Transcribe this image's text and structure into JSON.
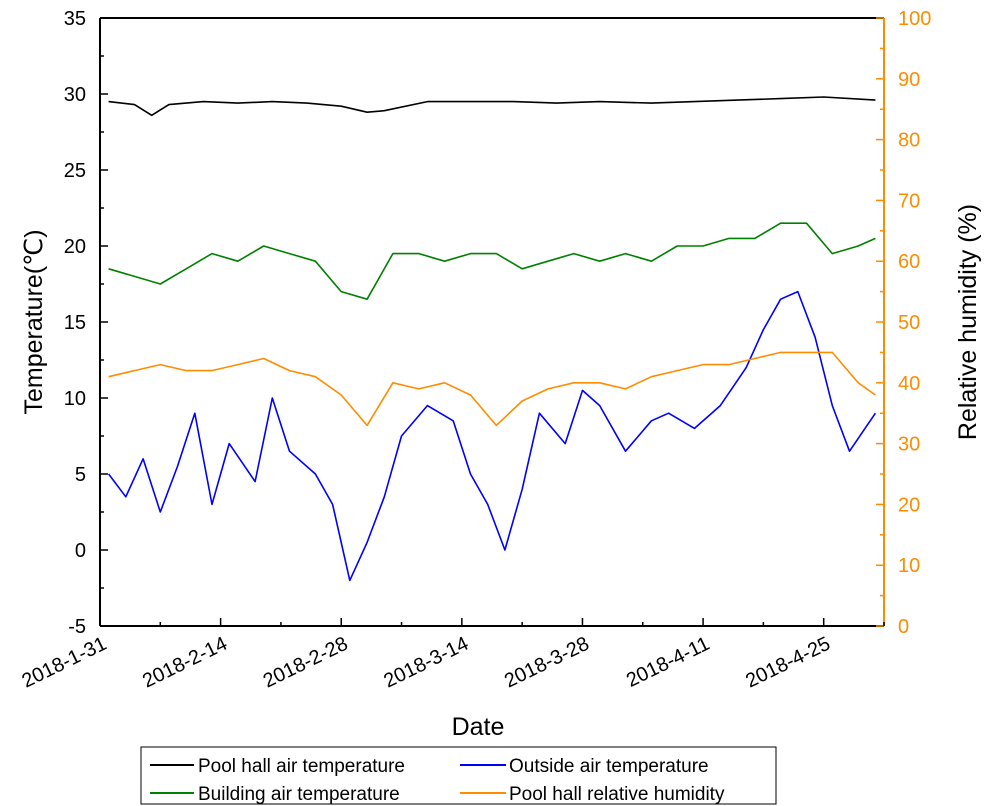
{
  "chart_data": {
    "type": "line",
    "xlabel": "Date",
    "ylabel_left": "Temperature(℃)",
    "ylabel_right": "Relative humidity (%)",
    "x_start": "2018-1-31",
    "x_end": "2018-5-2",
    "x_ticks": [
      "2018-1-31",
      "2018-2-14",
      "2018-2-28",
      "2018-3-14",
      "2018-3-28",
      "2018-4-11",
      "2018-4-25"
    ],
    "y_left_lim": [
      -5,
      35
    ],
    "y_left_ticks": [
      "-5",
      "0",
      "5",
      "10",
      "15",
      "20",
      "25",
      "30",
      "35"
    ],
    "y_right_lim": [
      0,
      100
    ],
    "y_right_ticks": [
      "0",
      "10",
      "20",
      "30",
      "40",
      "50",
      "60",
      "70",
      "80",
      "90",
      "100"
    ],
    "grid": false,
    "legend_position": "bottom",
    "colors": {
      "pool_temp": "#000000",
      "outside_temp": "#0000ff",
      "building_temp": "#008000",
      "humidity": "#ff8c00",
      "right_axis": "#ff8c00"
    },
    "series": [
      {
        "name": "Pool hall air temperature",
        "axis": "left",
        "x": [
          "2018-2-1",
          "2018-2-4",
          "2018-2-6",
          "2018-2-8",
          "2018-2-12",
          "2018-2-16",
          "2018-2-20",
          "2018-2-24",
          "2018-2-28",
          "2018-3-3",
          "2018-3-5",
          "2018-3-10",
          "2018-3-15",
          "2018-3-20",
          "2018-3-25",
          "2018-3-30",
          "2018-4-5",
          "2018-4-10",
          "2018-4-15",
          "2018-4-20",
          "2018-4-25",
          "2018-5-1"
        ],
        "y": [
          29.5,
          29.3,
          28.6,
          29.3,
          29.5,
          29.4,
          29.5,
          29.4,
          29.2,
          28.8,
          28.9,
          29.5,
          29.5,
          29.5,
          29.4,
          29.5,
          29.4,
          29.5,
          29.6,
          29.7,
          29.8,
          29.6
        ]
      },
      {
        "name": "Outside air temperature",
        "axis": "left",
        "x": [
          "2018-2-1",
          "2018-2-3",
          "2018-2-5",
          "2018-2-7",
          "2018-2-9",
          "2018-2-11",
          "2018-2-13",
          "2018-2-15",
          "2018-2-18",
          "2018-2-20",
          "2018-2-22",
          "2018-2-25",
          "2018-2-27",
          "2018-3-1",
          "2018-3-3",
          "2018-3-5",
          "2018-3-7",
          "2018-3-10",
          "2018-3-13",
          "2018-3-15",
          "2018-3-17",
          "2018-3-19",
          "2018-3-21",
          "2018-3-23",
          "2018-3-26",
          "2018-3-28",
          "2018-3-30",
          "2018-4-2",
          "2018-4-5",
          "2018-4-7",
          "2018-4-10",
          "2018-4-13",
          "2018-4-16",
          "2018-4-18",
          "2018-4-20",
          "2018-4-22",
          "2018-4-24",
          "2018-4-26",
          "2018-4-28",
          "2018-5-1"
        ],
        "y": [
          5.0,
          3.5,
          6.0,
          2.5,
          5.5,
          9.0,
          3.0,
          7.0,
          4.5,
          10.0,
          6.5,
          5.0,
          3.0,
          -2.0,
          0.5,
          3.5,
          7.5,
          9.5,
          8.5,
          5.0,
          3.0,
          0.0,
          4.0,
          9.0,
          7.0,
          10.5,
          9.5,
          6.5,
          8.5,
          9.0,
          8.0,
          9.5,
          12.0,
          14.5,
          16.5,
          17.0,
          14.0,
          9.5,
          6.5,
          9.0
        ]
      },
      {
        "name": "Building air temperature",
        "axis": "left",
        "x": [
          "2018-2-1",
          "2018-2-4",
          "2018-2-7",
          "2018-2-10",
          "2018-2-13",
          "2018-2-16",
          "2018-2-19",
          "2018-2-22",
          "2018-2-25",
          "2018-2-28",
          "2018-3-3",
          "2018-3-6",
          "2018-3-9",
          "2018-3-12",
          "2018-3-15",
          "2018-3-18",
          "2018-3-21",
          "2018-3-24",
          "2018-3-27",
          "2018-3-30",
          "2018-4-2",
          "2018-4-5",
          "2018-4-8",
          "2018-4-11",
          "2018-4-14",
          "2018-4-17",
          "2018-4-20",
          "2018-4-23",
          "2018-4-26",
          "2018-4-29",
          "2018-5-1"
        ],
        "y": [
          18.5,
          18.0,
          17.5,
          18.5,
          19.5,
          19.0,
          20.0,
          19.5,
          19.0,
          17.0,
          16.5,
          19.5,
          19.5,
          19.0,
          19.5,
          19.5,
          18.5,
          19.0,
          19.5,
          19.0,
          19.5,
          19.0,
          20.0,
          20.0,
          20.5,
          20.5,
          21.5,
          21.5,
          19.5,
          20.0,
          20.5
        ]
      },
      {
        "name": "Pool hall relative humidity",
        "axis": "right",
        "x": [
          "2018-2-1",
          "2018-2-4",
          "2018-2-7",
          "2018-2-10",
          "2018-2-13",
          "2018-2-16",
          "2018-2-19",
          "2018-2-22",
          "2018-2-25",
          "2018-2-28",
          "2018-3-3",
          "2018-3-6",
          "2018-3-9",
          "2018-3-12",
          "2018-3-15",
          "2018-3-18",
          "2018-3-21",
          "2018-3-24",
          "2018-3-27",
          "2018-3-30",
          "2018-4-2",
          "2018-4-5",
          "2018-4-8",
          "2018-4-11",
          "2018-4-14",
          "2018-4-17",
          "2018-4-20",
          "2018-4-23",
          "2018-4-26",
          "2018-4-29",
          "2018-5-1"
        ],
        "y": [
          41,
          42,
          43,
          42,
          42,
          43,
          44,
          42,
          41,
          38,
          33,
          40,
          39,
          40,
          38,
          33,
          37,
          39,
          40,
          40,
          39,
          41,
          42,
          43,
          43,
          44,
          45,
          45,
          45,
          40,
          38
        ]
      }
    ]
  },
  "legend": {
    "items": [
      {
        "label": "Pool hall air temperature",
        "color": "#000000"
      },
      {
        "label": "Outside air temperature",
        "color": "#0000ff"
      },
      {
        "label": "Building air temperature",
        "color": "#008000"
      },
      {
        "label": "Pool hall relative humidity",
        "color": "#ff8c00"
      }
    ]
  }
}
